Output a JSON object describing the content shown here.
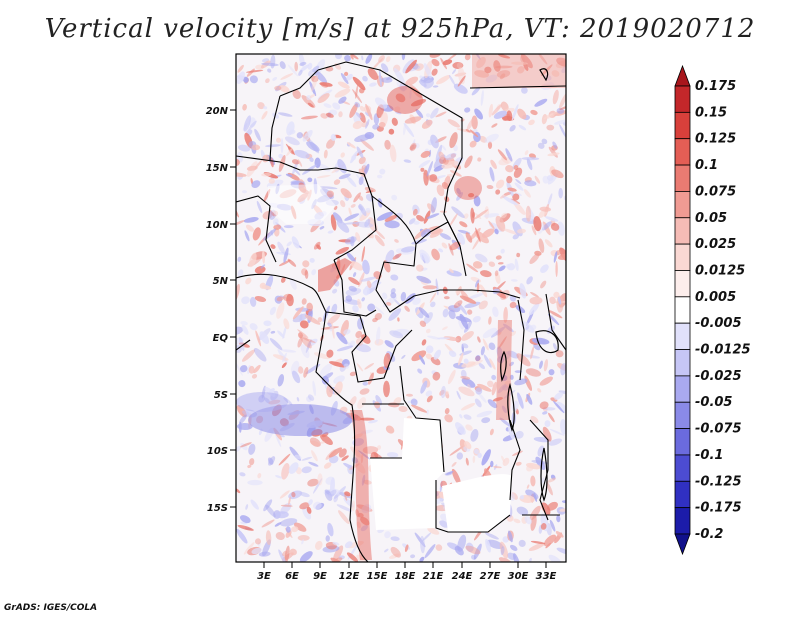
{
  "title": "Vertical velocity [m/s] at 925hPa, VT: 2019020712",
  "credit": "GrADS: IGES/COLA",
  "lat_labels": [
    "20N",
    "15N",
    "10N",
    "5N",
    "EQ",
    "5S",
    "10S",
    "15S"
  ],
  "lon_labels": [
    "3E",
    "6E",
    "9E",
    "12E",
    "15E",
    "18E",
    "21E",
    "24E",
    "27E",
    "30E",
    "33E"
  ],
  "colorbar": {
    "labels": [
      "0.175",
      "0.15",
      "0.125",
      "0.1",
      "0.075",
      "0.05",
      "0.025",
      "0.0125",
      "0.005",
      "-0.005",
      "-0.0125",
      "-0.025",
      "-0.05",
      "-0.075",
      "-0.1",
      "-0.125",
      "-0.175",
      "-0.2"
    ],
    "colors": [
      "#a8161c",
      "#c3272a",
      "#d8403b",
      "#e45e55",
      "#ea7b72",
      "#f09b93",
      "#f6bcb6",
      "#fad8d3",
      "#fdeeec",
      "#ffffff",
      "#e1e1fb",
      "#c6c6f6",
      "#a9a9f0",
      "#8a8ae8",
      "#6b6bde",
      "#4c4cd2",
      "#3030c2",
      "#1c1caa",
      "#11118c"
    ]
  },
  "chart_data": {
    "type": "heatmap",
    "title": "Vertical velocity [m/s] at 925hPa, VT: 2019020712",
    "variable": "Vertical velocity",
    "units": "m/s",
    "level": "925hPa",
    "valid_time": "2019020712",
    "xlabel": "",
    "ylabel": "",
    "x_ticks": [
      "3E",
      "6E",
      "9E",
      "12E",
      "15E",
      "18E",
      "21E",
      "24E",
      "27E",
      "30E",
      "33E"
    ],
    "y_ticks": [
      "20N",
      "15N",
      "10N",
      "5N",
      "EQ",
      "5S",
      "10S",
      "15S"
    ],
    "lon_range": [
      0,
      35
    ],
    "lat_range": [
      -20,
      25
    ],
    "contour_levels": [
      -0.2,
      -0.175,
      -0.125,
      -0.1,
      -0.075,
      -0.05,
      -0.025,
      -0.0125,
      -0.005,
      0.005,
      0.0125,
      0.025,
      0.05,
      0.075,
      0.1,
      0.125,
      0.15,
      0.175
    ]
  }
}
